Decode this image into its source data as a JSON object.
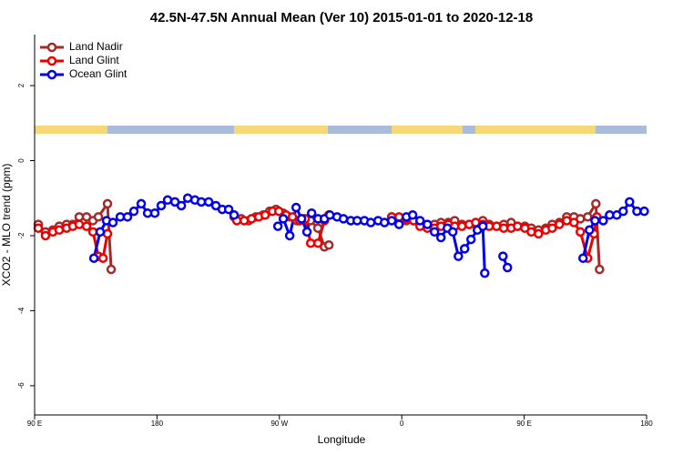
{
  "chart_data": {
    "type": "line",
    "title": "42.5N-47.5N Annual Mean (Ver 10)   2015-01-01 to 2020-12-18",
    "x_label": "Longitude",
    "y_label": "XCO2 - MLO trend (ppm)",
    "xlim": [
      90,
      540
    ],
    "xticks": [
      {
        "value": 90,
        "label": "90 E"
      },
      180,
      {
        "value": 270,
        "label": "90 W"
      },
      0,
      {
        "value": 450,
        "label": "90 E"
      },
      {
        "value": 540,
        "label": "180"
      }
    ],
    "ylim": [
      -6.78,
      3.36
    ],
    "yticks": [
      2,
      0,
      -2,
      -4,
      -6
    ],
    "legend": "top-left",
    "series": [
      {
        "name": "Land Nadir",
        "color": "#a52a2a",
        "x": [
          92.7,
          98,
          103.4,
          108.1,
          113.5,
          118.1,
          122.8,
          128.2,
          132.9,
          136.9,
          143.6,
          146.3,
          null,
          236.7,
          242,
          247.4,
          252.7,
          258.1,
          262.8,
          267.5,
          272.8,
          277.5,
          282.9,
          288.2,
          292.9,
          298.3,
          303.1,
          306.4,
          null,
          352.6,
          358,
          363.4,
          368.7,
          373.4,
          378.8,
          384.1,
          388.8,
          394.2,
          398.9,
          404.2,
          409.6,
          414.3,
          419.6,
          424.3,
          429.7,
          435,
          440.4,
          445.1,
          450.5,
          455.2,
          460.5,
          465.9,
          470.6,
          475.9,
          481.3,
          486.6,
          491.3,
          496.7,
          502.7,
          505.4
        ],
        "values": [
          -1.7,
          -1.9,
          -1.85,
          -1.75,
          -1.7,
          -1.7,
          -1.5,
          -1.5,
          -1.6,
          -1.5,
          -1.15,
          -2.9,
          null,
          -1.5,
          -1.55,
          -1.6,
          -1.5,
          -1.45,
          -1.35,
          -1.3,
          -1.4,
          -1.5,
          -1.6,
          -1.55,
          -1.6,
          -1.8,
          -2.3,
          -2.25,
          null,
          -1.5,
          -1.55,
          -1.6,
          -1.6,
          -1.7,
          -1.75,
          -1.7,
          -1.65,
          -1.65,
          -1.6,
          -1.7,
          -1.7,
          -1.7,
          -1.6,
          -1.7,
          -1.75,
          -1.7,
          -1.65,
          -1.75,
          -1.75,
          -1.8,
          -1.85,
          -1.8,
          -1.7,
          -1.65,
          -1.5,
          -1.5,
          -1.55,
          -1.5,
          -1.15,
          -2.9
        ]
      },
      {
        "name": "Land Glint",
        "color": "#ee0000",
        "x": [
          92.7,
          98,
          103.4,
          108.1,
          113.5,
          118.1,
          122.8,
          128.2,
          132.9,
          136.9,
          140.3,
          143.6,
          null,
          238.7,
          244.1,
          249.5,
          254.8,
          259.5,
          264.9,
          269.6,
          274.9,
          279.6,
          285,
          289,
          293,
          298.4,
          303.1,
          306.4,
          null,
          352.6,
          358,
          363.4,
          368.7,
          373.4,
          378.8,
          384.1,
          388.8,
          394.2,
          398.9,
          404.2,
          409.6,
          414.3,
          419.6,
          424.3,
          429.7,
          435,
          440.4,
          445.1,
          450.5,
          455.2,
          460.5,
          465.9,
          470.6,
          475.9,
          481.3,
          486.6,
          491.3,
          496.7,
          501.4,
          503.4
        ],
        "values": [
          -1.8,
          -2.0,
          -1.9,
          -1.85,
          -1.8,
          -1.75,
          -1.7,
          -1.75,
          -1.9,
          -2.55,
          -2.6,
          -1.95,
          null,
          -1.6,
          -1.6,
          -1.55,
          -1.5,
          -1.45,
          -1.35,
          -1.35,
          -1.45,
          -1.5,
          -1.6,
          -1.55,
          -2.2,
          -2.2,
          -1.6,
          -1.45,
          null,
          -1.5,
          -1.5,
          -1.55,
          -1.6,
          -1.75,
          -1.8,
          -1.8,
          -1.75,
          -1.7,
          -1.75,
          -1.75,
          -1.7,
          -1.65,
          -1.7,
          -1.75,
          -1.75,
          -1.8,
          -1.8,
          -1.75,
          -1.8,
          -1.9,
          -1.95,
          -1.85,
          -1.8,
          -1.7,
          -1.6,
          -1.65,
          -1.9,
          -2.6,
          -1.95,
          -1.5
        ]
      },
      {
        "name": "Ocean Glint",
        "color": "#0000ee",
        "x": [
          133.6,
          138.2,
          142.9,
          147.6,
          153,
          158.3,
          163,
          168.4,
          173.1,
          178.4,
          183.1,
          187.8,
          193.2,
          197.9,
          202.6,
          207.9,
          212.6,
          218,
          223.3,
          228,
          232.7,
          236.7,
          null,
          268.9,
          272.9,
          277.6,
          282.3,
          286.3,
          290.3,
          293.7,
          298.4,
          303.1,
          307.1,
          312.4,
          317.1,
          322.5,
          327.2,
          332.5,
          337.2,
          342.6,
          347.3,
          352.6,
          358,
          363.4,
          368,
          373.4,
          378.8,
          384.1,
          388.8,
          393.5,
          397.5,
          401.6,
          406.2,
          410.9,
          415.6,
          419.6,
          421,
          null,
          434.4,
          437.7,
          null,
          493.3,
          498,
          502.1,
          508.1,
          512.8,
          518.1,
          522.8,
          527.5,
          532.9,
          538.3
        ],
        "values": [
          -2.6,
          -1.9,
          -1.6,
          -1.65,
          -1.5,
          -1.5,
          -1.35,
          -1.15,
          -1.4,
          -1.4,
          -1.2,
          -1.05,
          -1.1,
          -1.2,
          -1.0,
          -1.05,
          -1.1,
          -1.1,
          -1.2,
          -1.3,
          -1.3,
          -1.45,
          null,
          -1.75,
          -1.55,
          -2.0,
          -1.25,
          -1.55,
          -1.9,
          -1.4,
          -1.55,
          -1.55,
          -1.45,
          -1.5,
          -1.55,
          -1.6,
          -1.6,
          -1.6,
          -1.65,
          -1.6,
          -1.65,
          -1.6,
          -1.7,
          -1.5,
          -1.45,
          -1.6,
          -1.7,
          -1.9,
          -2.05,
          -1.8,
          -1.9,
          -2.55,
          -2.35,
          -2.1,
          -1.85,
          -1.75,
          -3.0,
          null,
          -2.55,
          -2.85,
          null,
          -2.6,
          -1.85,
          -1.6,
          -1.6,
          -1.45,
          -1.45,
          -1.35,
          -1.1,
          -1.35,
          -1.35
        ]
      }
    ]
  }
}
